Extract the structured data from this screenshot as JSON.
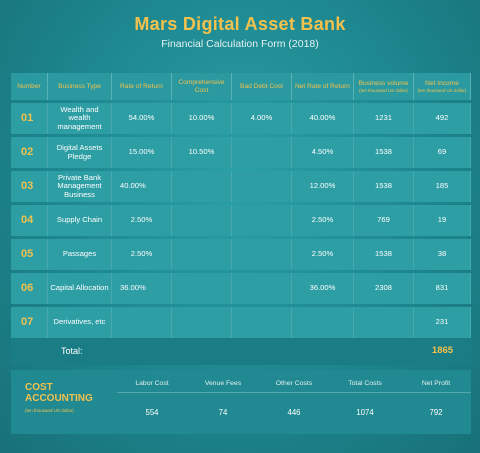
{
  "header": {
    "title": "Mars Digital Asset Bank",
    "subtitle": "Financial Calculation Form (2018)"
  },
  "table": {
    "columns": [
      "Number",
      "Business Type",
      "Rate of Return",
      "Comprehensive Cost",
      "Bad Debt Cost",
      "Net Rate of Return",
      "Business volume",
      "Net Income"
    ],
    "column_units": {
      "volume": "(ten thousand US dollar)",
      "income": "(ten thousand US dollar)"
    },
    "rows": [
      {
        "number": "01",
        "type": "Wealth and wealth management",
        "rate": "54.00%",
        "comp": "10.00%",
        "bad": "4.00%",
        "net_rate": "40.00%",
        "volume": "1231",
        "income": "492"
      },
      {
        "number": "02",
        "type": "Digital Assets Pledge",
        "rate": "15.00%",
        "comp": "10.50%",
        "bad": "",
        "net_rate": "4.50%",
        "volume": "1538",
        "income": "69"
      },
      {
        "number": "03",
        "type": "Private Bank Management Business",
        "rate": "40.00%",
        "comp": "",
        "bad": "",
        "net_rate": "12.00%",
        "volume": "1538",
        "income": "185"
      },
      {
        "number": "04",
        "type": "Supply Chain",
        "rate": "2.50%",
        "comp": "",
        "bad": "",
        "net_rate": "2.50%",
        "volume": "769",
        "income": "19"
      },
      {
        "number": "05",
        "type": "Passages",
        "rate": "2.50%",
        "comp": "",
        "bad": "",
        "net_rate": "2.50%",
        "volume": "1538",
        "income": "38"
      },
      {
        "number": "06",
        "type": "Capital Allocation",
        "rate": "36.00%",
        "comp": "",
        "bad": "",
        "net_rate": "36.00%",
        "volume": "2308",
        "income": "831"
      },
      {
        "number": "07",
        "type": "Derivatives, etc",
        "rate": "",
        "comp": "",
        "bad": "",
        "net_rate": "",
        "volume": "",
        "income": "231"
      }
    ],
    "total_label": "Total:",
    "total_value": "1865"
  },
  "cost": {
    "title_line1": "COST",
    "title_line2": "ACCOUNTING",
    "unit": "(ten thousand US dollar)",
    "items": [
      {
        "label": "Labor Cost",
        "value": "554"
      },
      {
        "label": "Venue Fees",
        "value": "74"
      },
      {
        "label": "Other Costs",
        "value": "446"
      },
      {
        "label": "Total Costs",
        "value": "1074"
      },
      {
        "label": "Net Profit",
        "value": "792"
      }
    ]
  },
  "colors": {
    "accent": "#f2c14e",
    "background": "#1f8a92"
  }
}
